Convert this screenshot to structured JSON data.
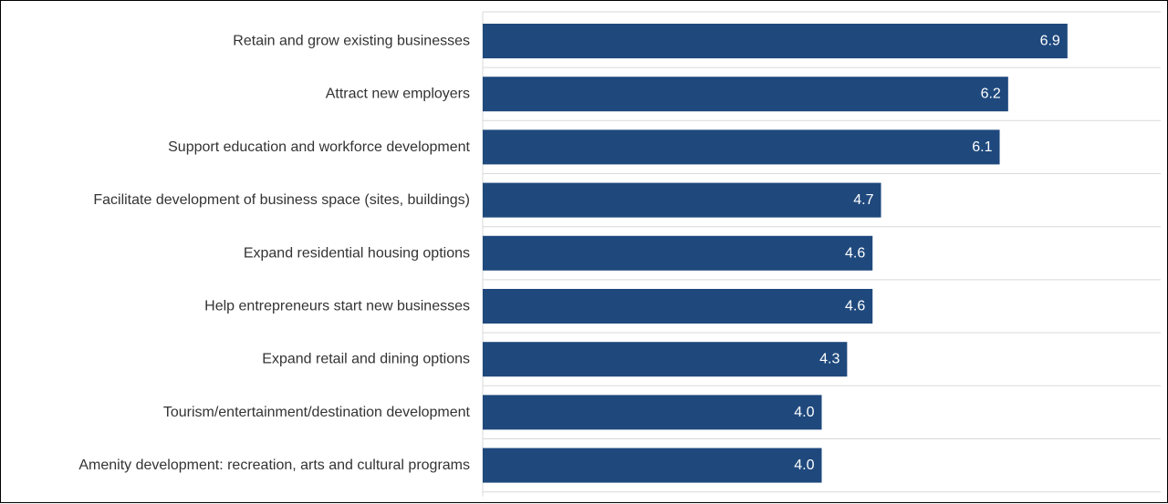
{
  "chart_data": {
    "type": "bar",
    "orientation": "horizontal",
    "categories": [
      "Retain and grow existing businesses",
      "Attract new employers",
      "Support education and workforce development",
      "Facilitate development of business space (sites, buildings)",
      "Expand residential housing options",
      "Help entrepreneurs start new businesses",
      "Expand retail and dining options",
      "Tourism/entertainment/destination development",
      "Amenity development: recreation, arts and cultural programs"
    ],
    "values": [
      6.9,
      6.2,
      6.1,
      4.7,
      4.6,
      4.6,
      4.3,
      4.0,
      4.0
    ],
    "value_labels": [
      "6.9",
      "6.2",
      "6.1",
      "4.7",
      "4.6",
      "4.6",
      "4.3",
      "4.0",
      "4.0"
    ],
    "xlim": [
      0,
      8
    ],
    "grid": true,
    "legend": "none",
    "colors": {
      "bar": "#1f497d",
      "grid": "#d9d9d9",
      "label_text": "#333333",
      "value_text": "#ffffff"
    }
  }
}
